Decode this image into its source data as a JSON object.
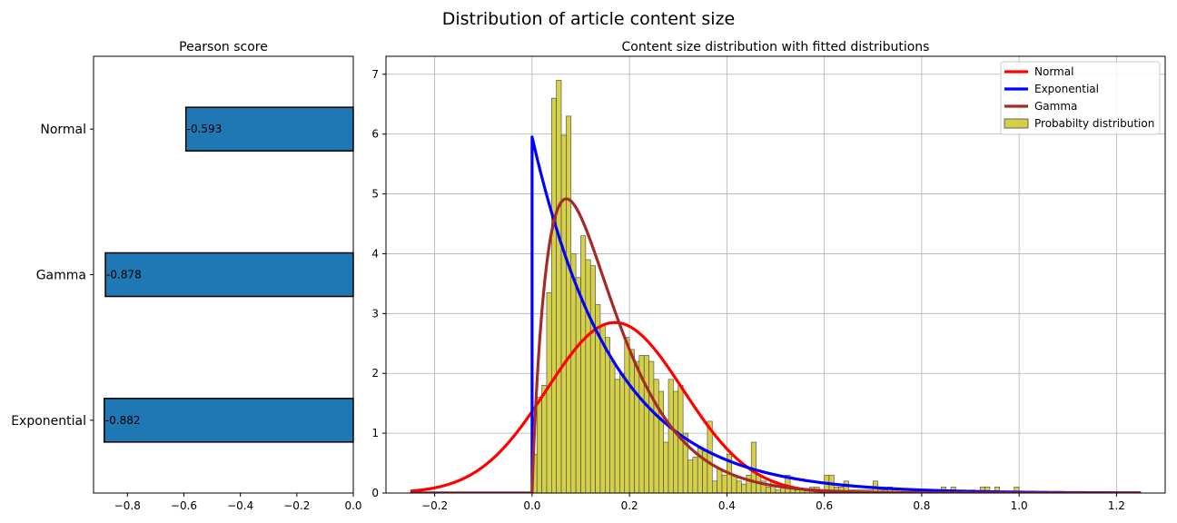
{
  "figure": {
    "title": "Distribution of article content size"
  },
  "chart_data": [
    {
      "type": "bar",
      "orientation": "horizontal",
      "title": "Pearson score",
      "categories": [
        "Exponential",
        "Gamma",
        "Normal"
      ],
      "values": [
        -0.882,
        -0.878,
        -0.593
      ],
      "value_labels": [
        "-0.882",
        "-0.878",
        "-0.593"
      ],
      "xlim": [
        -0.92,
        0.0
      ],
      "xticks": [
        -0.8,
        -0.6,
        -0.4,
        -0.2,
        0.0
      ],
      "xtick_labels": [
        "−0.8",
        "−0.6",
        "−0.4",
        "−0.2",
        "0.0"
      ],
      "bar_color": "#1f77b4",
      "grid": false
    },
    {
      "type": "histogram",
      "title": "Content size distribution with fitted distributions",
      "xlim": [
        -0.3,
        1.3
      ],
      "ylim": [
        0,
        7.3
      ],
      "xticks": [
        -0.2,
        0.0,
        0.2,
        0.4,
        0.6,
        0.8,
        1.0,
        1.2
      ],
      "xtick_labels": [
        "−0.2",
        "0.0",
        "0.2",
        "0.4",
        "0.6",
        "0.8",
        "1.0",
        "1.2"
      ],
      "yticks": [
        0,
        1,
        2,
        3,
        4,
        5,
        6,
        7
      ],
      "ytick_labels": [
        "0",
        "1",
        "2",
        "3",
        "4",
        "5",
        "6",
        "7"
      ],
      "grid": true,
      "legend_position": "top-right",
      "histogram": {
        "name": "Probabilty distribution",
        "color": "#d4d04a",
        "bin_start": 0.0,
        "bin_width": 0.01,
        "heights": [
          0.65,
          1.6,
          1.8,
          3.35,
          6.6,
          6.9,
          5.98,
          6.3,
          4.0,
          3.6,
          4.3,
          3.9,
          3.8,
          3.15,
          2.8,
          2.6,
          2.2,
          1.9,
          2.0,
          2.6,
          2.4,
          2.2,
          2.3,
          2.3,
          2.2,
          1.9,
          1.7,
          0.85,
          1.9,
          1.7,
          1.8,
          1.0,
          0.55,
          0.6,
          0.75,
          0.7,
          1.2,
          0.2,
          0.4,
          0.3,
          0.65,
          0.3,
          0.2,
          0.15,
          0.3,
          0.85,
          0.3,
          0.2,
          0.1,
          0.2,
          0.05,
          0.1,
          0.3,
          0.1,
          0.05,
          0.05,
          0.05,
          0.1,
          0.1,
          0.05,
          0.3,
          0.3,
          0.1,
          0.1,
          0.2,
          0.05,
          0.05,
          0.05,
          0.05,
          0.05,
          0.2,
          0.05,
          0.05,
          0.1,
          0.05,
          0.05,
          0.05,
          0.05,
          0.05,
          0.05,
          0,
          0,
          0,
          0.05,
          0.1,
          0,
          0.1,
          0,
          0.05,
          0,
          0.05,
          0,
          0.1,
          0.1,
          0,
          0.1,
          0,
          0,
          0,
          0.1
        ]
      },
      "curves": [
        {
          "name": "Normal",
          "color": "#ff0000",
          "dist": "normal",
          "params": {
            "mean": 0.17,
            "sd": 0.14
          },
          "x_range": [
            -0.25,
            1.25
          ]
        },
        {
          "name": "Exponential",
          "color": "#0000ff",
          "dist": "exponential",
          "params": {
            "loc": 0.0,
            "scale": 0.168
          },
          "x_range": [
            -0.25,
            1.25
          ]
        },
        {
          "name": "Gamma",
          "color": "#a52a2a",
          "dist": "gamma",
          "params": {
            "shape": 1.9,
            "scale": 0.0782
          },
          "x_range": [
            -0.25,
            1.25
          ]
        }
      ]
    }
  ]
}
